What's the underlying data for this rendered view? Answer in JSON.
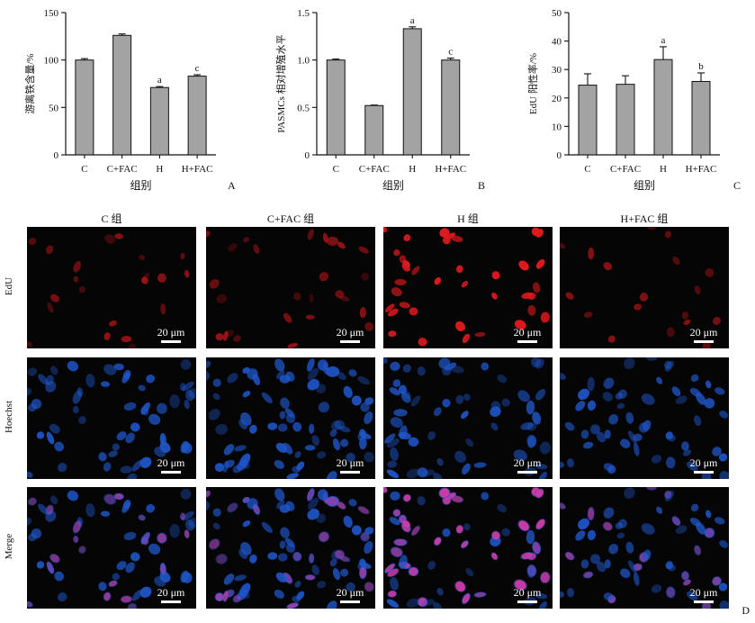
{
  "chart_data": [
    {
      "type": "bar",
      "panel": "A",
      "categories": [
        "C",
        "C+FAC",
        "H",
        "H+FAC"
      ],
      "values": [
        100,
        126,
        71,
        83
      ],
      "errors": [
        1.5,
        1.5,
        1.0,
        1.5
      ],
      "annotations": [
        "",
        "",
        "a",
        "c"
      ],
      "xlabel": "组别",
      "ylabel": "游离铁含量/%",
      "ylim": [
        0,
        150
      ],
      "yticks": [
        0,
        50,
        100,
        150
      ],
      "ytick_labels": [
        "0",
        "50",
        "100",
        "150"
      ]
    },
    {
      "type": "bar",
      "panel": "B",
      "categories": [
        "C",
        "C+FAC",
        "H",
        "H+FAC"
      ],
      "values": [
        1.0,
        0.52,
        1.33,
        1.0
      ],
      "errors": [
        0.01,
        0.005,
        0.02,
        0.02
      ],
      "annotations": [
        "",
        "",
        "a",
        "c"
      ],
      "xlabel": "组别",
      "ylabel": "PASMCs 相对增殖水平",
      "ylim": [
        0,
        1.5
      ],
      "yticks": [
        0,
        0.5,
        1.0,
        1.5
      ],
      "ytick_labels": [
        "0",
        "0.5",
        "1.0",
        "1.5"
      ]
    },
    {
      "type": "bar",
      "panel": "C",
      "categories": [
        "C",
        "C+FAC",
        "H",
        "H+FAC"
      ],
      "values": [
        24.5,
        24.8,
        33.5,
        25.8
      ],
      "errors": [
        4.0,
        3.0,
        4.5,
        3.0
      ],
      "annotations": [
        "",
        "",
        "a",
        "b"
      ],
      "xlabel": "组别",
      "ylabel": "EdU 阳性率/%",
      "ylim": [
        0,
        50
      ],
      "yticks": [
        0,
        10,
        20,
        30,
        40,
        50
      ],
      "ytick_labels": [
        "0",
        "10",
        "20",
        "30",
        "40",
        "50"
      ]
    }
  ],
  "micrographs": {
    "column_titles": [
      "C 组",
      "C+FAC 组",
      "H 组",
      "H+FAC 组"
    ],
    "row_labels": [
      "EdU",
      "Hoechst",
      "Merge"
    ],
    "scale_bar_label": "20 μm",
    "panel_label": "D",
    "colors": {
      "edu": "#e0191e",
      "hoechst": "#1f56c9",
      "merge_pink": "#d43aa6",
      "background": "#050505"
    }
  }
}
